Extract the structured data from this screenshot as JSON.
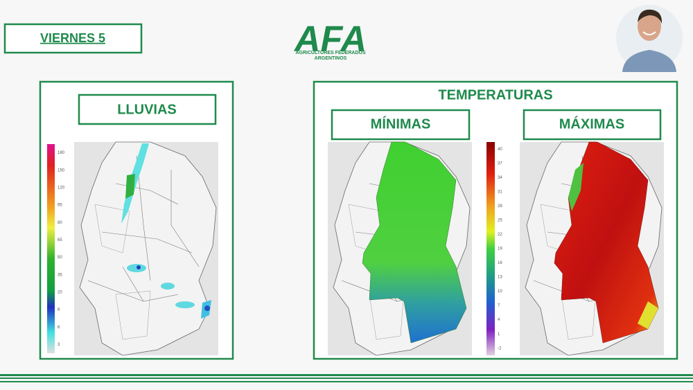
{
  "header": {
    "day": "VIERNES 5",
    "logo": {
      "title": "AFA",
      "subtitle_1": "AGRICULTORES FEDERADOS",
      "subtitle_2": "ARGENTINOS"
    }
  },
  "rain_panel": {
    "title": "LLUVIAS",
    "scale": [
      180,
      150,
      120,
      95,
      80,
      65,
      50,
      35,
      20,
      8,
      6,
      3
    ]
  },
  "temperature_panel": {
    "title": "TEMPERATURAS",
    "min_title": "MÍNIMAS",
    "max_title": "MÁXIMAS",
    "scale": [
      40,
      37,
      34,
      31,
      28,
      25,
      22,
      19,
      16,
      13,
      10,
      7,
      4,
      1,
      -2
    ]
  }
}
